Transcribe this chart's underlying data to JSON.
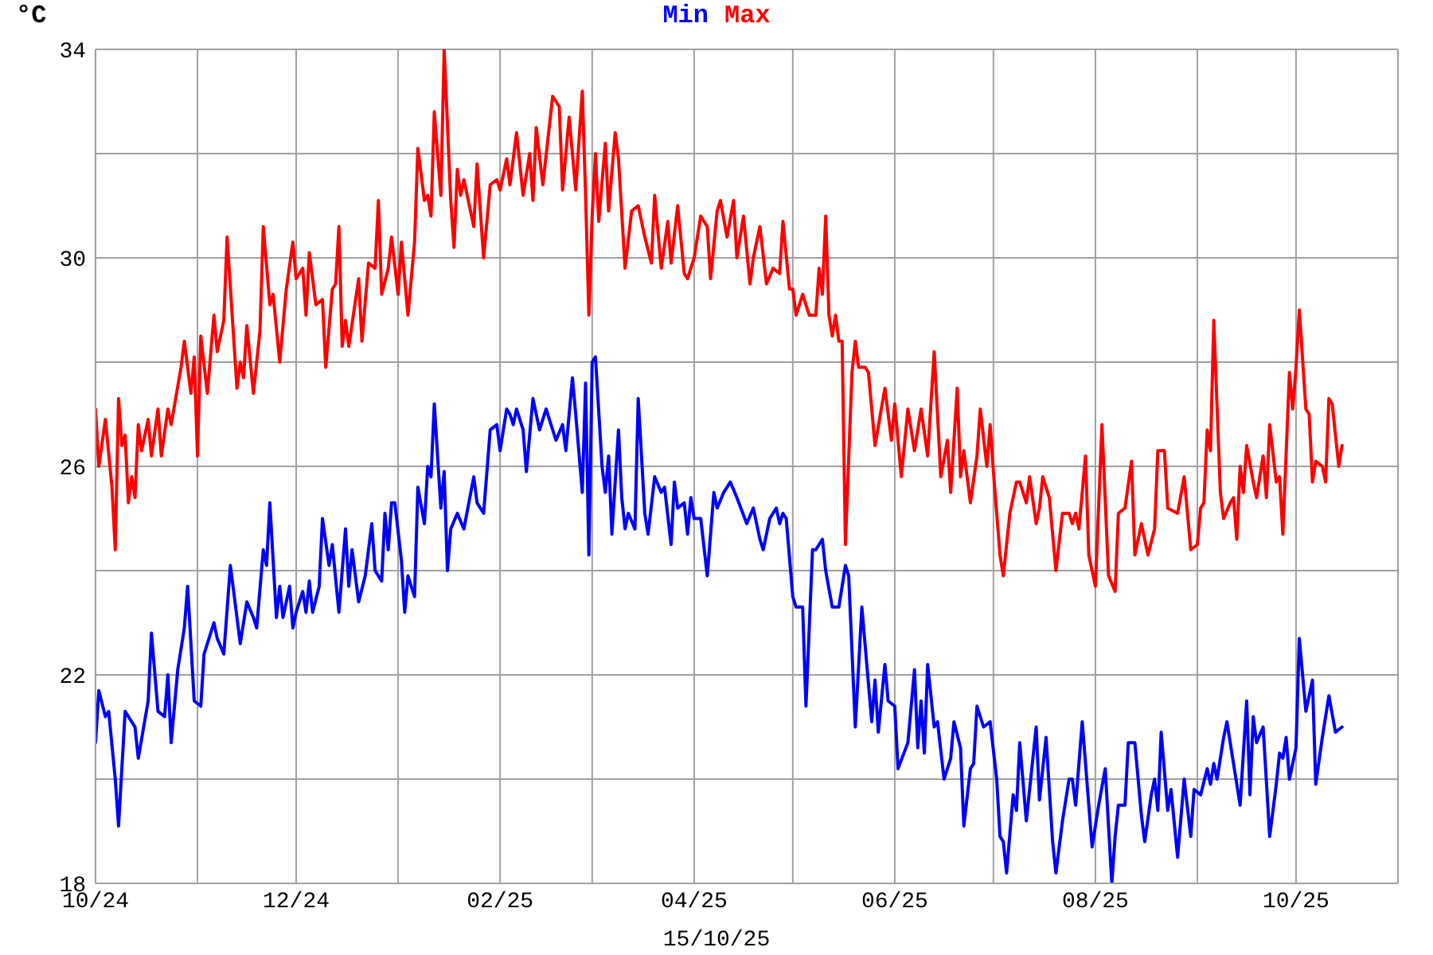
{
  "chart_data": {
    "type": "line",
    "ylabel": "°C",
    "annotations": [
      "15/10/25"
    ],
    "legend": "top",
    "grid": true,
    "xlim": [
      "2024-10-01",
      "2025-11-01"
    ],
    "xticks": [
      {
        "value": "2024-10-01",
        "label": "10/24"
      },
      {
        "value": "2024-11-01",
        "label": null
      },
      {
        "value": "2024-12-01",
        "label": "12/24"
      },
      {
        "value": "2025-01-01",
        "label": null
      },
      {
        "value": "2025-02-01",
        "label": "02/25"
      },
      {
        "value": "2025-03-01",
        "label": null
      },
      {
        "value": "2025-04-01",
        "label": "04/25"
      },
      {
        "value": "2025-05-01",
        "label": null
      },
      {
        "value": "2025-06-01",
        "label": "06/25"
      },
      {
        "value": "2025-07-01",
        "label": null
      },
      {
        "value": "2025-08-01",
        "label": "08/25"
      },
      {
        "value": "2025-09-01",
        "label": null
      },
      {
        "value": "2025-10-01",
        "label": "10/25"
      },
      {
        "value": "2025-11-01",
        "label": null
      }
    ],
    "ylim": [
      18,
      34
    ],
    "yticks": [
      18,
      {
        "value": 20,
        "label": null
      },
      22,
      {
        "value": 24,
        "label": null
      },
      26,
      {
        "value": 28,
        "label": null
      },
      30,
      {
        "value": 32,
        "label": null
      },
      34
    ],
    "series": [
      {
        "name": "Min",
        "color": "#0000ff",
        "x": [
          "2024-10-01",
          "2024-10-02",
          "2024-10-04",
          "2024-10-05",
          "2024-10-07",
          "2024-10-08",
          "2024-10-10",
          "2024-10-12",
          "2024-10-13",
          "2024-10-14",
          "2024-10-17",
          "2024-10-18",
          "2024-10-20",
          "2024-10-22",
          "2024-10-23",
          "2024-10-24",
          "2024-10-26",
          "2024-10-28",
          "2024-10-29",
          "2024-10-31",
          "2024-11-02",
          "2024-11-03",
          "2024-11-06",
          "2024-11-07",
          "2024-11-09",
          "2024-11-11",
          "2024-11-14",
          "2024-11-16",
          "2024-11-18",
          "2024-11-19",
          "2024-11-21",
          "2024-11-22",
          "2024-11-23",
          "2024-11-25",
          "2024-11-26",
          "2024-11-27",
          "2024-11-29",
          "2024-11-30",
          "2024-12-01",
          "2024-12-03",
          "2024-12-04",
          "2024-12-05",
          "2024-12-06",
          "2024-12-08",
          "2024-12-09",
          "2024-12-11",
          "2024-12-12",
          "2024-12-14",
          "2024-12-16",
          "2024-12-17",
          "2024-12-18",
          "2024-12-20",
          "2024-12-22",
          "2024-12-24",
          "2024-12-25",
          "2024-12-27",
          "2024-12-28",
          "2024-12-29",
          "2024-12-30",
          "2024-12-31",
          "2025-01-02",
          "2025-01-03",
          "2025-01-04",
          "2025-01-06",
          "2025-01-07",
          "2025-01-09",
          "2025-01-10",
          "2025-01-11",
          "2025-01-12",
          "2025-01-14",
          "2025-01-15",
          "2025-01-16",
          "2025-01-17",
          "2025-01-19",
          "2025-01-21",
          "2025-01-24",
          "2025-01-25",
          "2025-01-27",
          "2025-01-29",
          "2025-01-31",
          "2025-02-01",
          "2025-02-03",
          "2025-02-04",
          "2025-02-05",
          "2025-02-06",
          "2025-02-08",
          "2025-02-09",
          "2025-02-11",
          "2025-02-13",
          "2025-02-15",
          "2025-02-16",
          "2025-02-18",
          "2025-02-20",
          "2025-02-21",
          "2025-02-23",
          "2025-02-24",
          "2025-02-26",
          "2025-02-27",
          "2025-02-28",
          "2025-03-01",
          "2025-03-02",
          "2025-03-04",
          "2025-03-05",
          "2025-03-06",
          "2025-03-07",
          "2025-03-09",
          "2025-03-10",
          "2025-03-11",
          "2025-03-12",
          "2025-03-14",
          "2025-03-15",
          "2025-03-17",
          "2025-03-18",
          "2025-03-20",
          "2025-03-22",
          "2025-03-23",
          "2025-03-25",
          "2025-03-26",
          "2025-03-27",
          "2025-03-29",
          "2025-03-30",
          "2025-03-31",
          "2025-04-01",
          "2025-04-03",
          "2025-04-05",
          "2025-04-07",
          "2025-04-08",
          "2025-04-10",
          "2025-04-12",
          "2025-04-14",
          "2025-04-17",
          "2025-04-19",
          "2025-04-21",
          "2025-04-22",
          "2025-04-24",
          "2025-04-26",
          "2025-04-27",
          "2025-04-28",
          "2025-04-29",
          "2025-05-01",
          "2025-05-02",
          "2025-05-03",
          "2025-05-04",
          "2025-05-05",
          "2025-05-07",
          "2025-05-08",
          "2025-05-10",
          "2025-05-11",
          "2025-05-13",
          "2025-05-15",
          "2025-05-17",
          "2025-05-18",
          "2025-05-20",
          "2025-05-22",
          "2025-05-25",
          "2025-05-26",
          "2025-05-27",
          "2025-05-29",
          "2025-05-30",
          "2025-06-01",
          "2025-06-02",
          "2025-06-05",
          "2025-06-07",
          "2025-06-08",
          "2025-06-09",
          "2025-06-10",
          "2025-06-11",
          "2025-06-13",
          "2025-06-14",
          "2025-06-16",
          "2025-06-18",
          "2025-06-19",
          "2025-06-21",
          "2025-06-22",
          "2025-06-24",
          "2025-06-25",
          "2025-06-26",
          "2025-06-28",
          "2025-06-30",
          "2025-07-02",
          "2025-07-03",
          "2025-07-04",
          "2025-07-05",
          "2025-07-07",
          "2025-07-08",
          "2025-07-09",
          "2025-07-11",
          "2025-07-14",
          "2025-07-15",
          "2025-07-17",
          "2025-07-19",
          "2025-07-20",
          "2025-07-22",
          "2025-07-24",
          "2025-07-25",
          "2025-07-26",
          "2025-07-28",
          "2025-07-30",
          "2025-07-31",
          "2025-08-02",
          "2025-08-04",
          "2025-08-06",
          "2025-08-07",
          "2025-08-08",
          "2025-08-10",
          "2025-08-11",
          "2025-08-13",
          "2025-08-15",
          "2025-08-16",
          "2025-08-18",
          "2025-08-19",
          "2025-08-20",
          "2025-08-21",
          "2025-08-23",
          "2025-08-24",
          "2025-08-26",
          "2025-08-28",
          "2025-08-30",
          "2025-08-31",
          "2025-09-02",
          "2025-09-04",
          "2025-09-05",
          "2025-09-06",
          "2025-09-07",
          "2025-09-09",
          "2025-09-10",
          "2025-09-12",
          "2025-09-14",
          "2025-09-16",
          "2025-09-17",
          "2025-09-18",
          "2025-09-19",
          "2025-09-21",
          "2025-09-23",
          "2025-09-25",
          "2025-09-26",
          "2025-09-27",
          "2025-09-28",
          "2025-09-29",
          "2025-10-01",
          "2025-10-02",
          "2025-10-04",
          "2025-10-06",
          "2025-10-07",
          "2025-10-09",
          "2025-10-11",
          "2025-10-13",
          "2025-10-15"
        ],
        "values": [
          20.7,
          21.7,
          21.2,
          21.3,
          20.0,
          19.1,
          21.3,
          21.1,
          21.0,
          20.4,
          21.5,
          22.8,
          21.3,
          21.2,
          22.0,
          20.7,
          22.1,
          22.9,
          23.7,
          21.5,
          21.4,
          22.4,
          23.0,
          22.7,
          22.4,
          24.1,
          22.6,
          23.4,
          23.1,
          22.9,
          24.4,
          24.1,
          25.3,
          23.1,
          23.7,
          23.1,
          23.7,
          22.9,
          23.2,
          23.6,
          23.2,
          23.8,
          23.2,
          23.7,
          25.0,
          24.1,
          24.5,
          23.2,
          24.8,
          23.7,
          24.4,
          23.4,
          23.9,
          24.9,
          24.0,
          23.8,
          25.1,
          24.4,
          25.3,
          25.3,
          24.2,
          23.2,
          23.9,
          23.5,
          25.6,
          24.9,
          26.0,
          25.8,
          27.2,
          25.2,
          25.9,
          24.0,
          24.8,
          25.1,
          24.8,
          25.8,
          25.3,
          25.1,
          26.7,
          26.8,
          26.3,
          27.1,
          27.0,
          26.8,
          27.1,
          26.7,
          25.9,
          27.3,
          26.7,
          27.1,
          26.9,
          26.5,
          26.8,
          26.3,
          27.7,
          27.0,
          25.5,
          27.6,
          24.3,
          28.0,
          28.1,
          26.0,
          25.5,
          26.2,
          24.7,
          26.7,
          25.4,
          24.8,
          25.1,
          24.8,
          27.3,
          25.1,
          24.7,
          25.8,
          25.5,
          25.6,
          24.5,
          25.7,
          25.2,
          25.3,
          24.7,
          25.4,
          25.0,
          25.0,
          23.9,
          25.5,
          25.2,
          25.5,
          25.7,
          25.4,
          24.9,
          25.2,
          24.6,
          24.4,
          25.0,
          25.2,
          24.9,
          25.1,
          25.0,
          23.5,
          23.3,
          23.3,
          23.3,
          21.4,
          24.4,
          24.4,
          24.6,
          24.0,
          23.3,
          23.3,
          24.1,
          23.9,
          21.0,
          23.3,
          21.1,
          21.9,
          20.9,
          22.2,
          21.5,
          21.4,
          20.2,
          20.7,
          22.1,
          20.6,
          21.5,
          20.5,
          22.2,
          21.0,
          21.1,
          20.0,
          20.4,
          21.1,
          20.6,
          19.1,
          20.2,
          20.3,
          21.4,
          21.0,
          21.1,
          20.0,
          18.9,
          18.8,
          18.2,
          19.7,
          19.4,
          20.7,
          19.2,
          21.0,
          19.6,
          20.8,
          18.8,
          18.2,
          19.2,
          20.0,
          20.0,
          19.5,
          21.1,
          19.5,
          18.7,
          19.5,
          20.2,
          18.0,
          18.9,
          19.5,
          19.5,
          20.7,
          20.7,
          19.3,
          18.8,
          19.7,
          20.0,
          19.4,
          20.9,
          19.4,
          19.8,
          18.5,
          20.0,
          18.9,
          19.8,
          19.7,
          20.2,
          19.9,
          20.3,
          20.0,
          20.8,
          21.1,
          20.3,
          19.5,
          21.5,
          19.7,
          21.2,
          20.7,
          21.0,
          18.9,
          19.9,
          20.5,
          20.4,
          20.8,
          20.0,
          20.6,
          22.7,
          21.3,
          21.9,
          19.9,
          20.8,
          21.6,
          20.9,
          21.0
        ]
      },
      {
        "name": "Max",
        "color": "#ff0000",
        "x": [
          "2024-10-01",
          "2024-10-02",
          "2024-10-04",
          "2024-10-06",
          "2024-10-07",
          "2024-10-08",
          "2024-10-09",
          "2024-10-10",
          "2024-10-11",
          "2024-10-12",
          "2024-10-13",
          "2024-10-14",
          "2024-10-15",
          "2024-10-17",
          "2024-10-18",
          "2024-10-20",
          "2024-10-21",
          "2024-10-23",
          "2024-10-24",
          "2024-10-27",
          "2024-10-28",
          "2024-10-30",
          "2024-10-31",
          "2024-11-01",
          "2024-11-02",
          "2024-11-04",
          "2024-11-06",
          "2024-11-07",
          "2024-11-09",
          "2024-11-10",
          "2024-11-13",
          "2024-11-14",
          "2024-11-15",
          "2024-11-16",
          "2024-11-18",
          "2024-11-20",
          "2024-11-21",
          "2024-11-23",
          "2024-11-24",
          "2024-11-26",
          "2024-11-28",
          "2024-11-30",
          "2024-12-01",
          "2024-12-03",
          "2024-12-04",
          "2024-12-05",
          "2024-12-07",
          "2024-12-09",
          "2024-12-10",
          "2024-12-12",
          "2024-12-13",
          "2024-12-14",
          "2024-12-15",
          "2024-12-16",
          "2024-12-17",
          "2024-12-20",
          "2024-12-21",
          "2024-12-23",
          "2024-12-25",
          "2024-12-26",
          "2024-12-27",
          "2024-12-29",
          "2024-12-30",
          "2025-01-01",
          "2025-01-02",
          "2025-01-04",
          "2025-01-06",
          "2025-01-07",
          "2025-01-09",
          "2025-01-10",
          "2025-01-11",
          "2025-01-12",
          "2025-01-14",
          "2025-01-15",
          "2025-01-17",
          "2025-01-18",
          "2025-01-19",
          "2025-01-20",
          "2025-01-21",
          "2025-01-24",
          "2025-01-25",
          "2025-01-27",
          "2025-01-29",
          "2025-01-31",
          "2025-02-01",
          "2025-02-03",
          "2025-02-04",
          "2025-02-06",
          "2025-02-08",
          "2025-02-10",
          "2025-02-11",
          "2025-02-12",
          "2025-02-14",
          "2025-02-17",
          "2025-02-19",
          "2025-02-20",
          "2025-02-22",
          "2025-02-24",
          "2025-02-26",
          "2025-02-27",
          "2025-02-28",
          "2025-03-01",
          "2025-03-02",
          "2025-03-03",
          "2025-03-05",
          "2025-03-06",
          "2025-03-08",
          "2025-03-09",
          "2025-03-11",
          "2025-03-13",
          "2025-03-15",
          "2025-03-17",
          "2025-03-19",
          "2025-03-20",
          "2025-03-22",
          "2025-03-24",
          "2025-03-25",
          "2025-03-27",
          "2025-03-29",
          "2025-03-30",
          "2025-04-01",
          "2025-04-03",
          "2025-04-05",
          "2025-04-06",
          "2025-04-08",
          "2025-04-09",
          "2025-04-11",
          "2025-04-13",
          "2025-04-14",
          "2025-04-16",
          "2025-04-18",
          "2025-04-19",
          "2025-04-21",
          "2025-04-23",
          "2025-04-25",
          "2025-04-27",
          "2025-04-28",
          "2025-04-30",
          "2025-05-01",
          "2025-05-02",
          "2025-05-04",
          "2025-05-06",
          "2025-05-08",
          "2025-05-09",
          "2025-05-10",
          "2025-05-11",
          "2025-05-12",
          "2025-05-13",
          "2025-05-14",
          "2025-05-15",
          "2025-05-16",
          "2025-05-17",
          "2025-05-19",
          "2025-05-20",
          "2025-05-21",
          "2025-05-23",
          "2025-05-24",
          "2025-05-26",
          "2025-05-29",
          "2025-05-31",
          "2025-06-01",
          "2025-06-03",
          "2025-06-05",
          "2025-06-07",
          "2025-06-09",
          "2025-06-11",
          "2025-06-13",
          "2025-06-15",
          "2025-06-17",
          "2025-06-18",
          "2025-06-20",
          "2025-06-21",
          "2025-06-22",
          "2025-06-24",
          "2025-06-26",
          "2025-06-27",
          "2025-06-29",
          "2025-06-30",
          "2025-07-01",
          "2025-07-03",
          "2025-07-04",
          "2025-07-06",
          "2025-07-08",
          "2025-07-09",
          "2025-07-11",
          "2025-07-12",
          "2025-07-14",
          "2025-07-15",
          "2025-07-16",
          "2025-07-18",
          "2025-07-20",
          "2025-07-22",
          "2025-07-24",
          "2025-07-25",
          "2025-07-26",
          "2025-07-27",
          "2025-07-29",
          "2025-07-30",
          "2025-08-01",
          "2025-08-03",
          "2025-08-05",
          "2025-08-07",
          "2025-08-08",
          "2025-08-10",
          "2025-08-12",
          "2025-08-13",
          "2025-08-15",
          "2025-08-17",
          "2025-08-19",
          "2025-08-20",
          "2025-08-22",
          "2025-08-23",
          "2025-08-26",
          "2025-08-28",
          "2025-08-30",
          "2025-09-01",
          "2025-09-02",
          "2025-09-03",
          "2025-09-04",
          "2025-09-05",
          "2025-09-06",
          "2025-09-08",
          "2025-09-09",
          "2025-09-11",
          "2025-09-12",
          "2025-09-13",
          "2025-09-14",
          "2025-09-15",
          "2025-09-16",
          "2025-09-18",
          "2025-09-19",
          "2025-09-21",
          "2025-09-22",
          "2025-09-23",
          "2025-09-25",
          "2025-09-26",
          "2025-09-27",
          "2025-09-29",
          "2025-09-30",
          "2025-10-01",
          "2025-10-02",
          "2025-10-04",
          "2025-10-05",
          "2025-10-06",
          "2025-10-07",
          "2025-10-09",
          "2025-10-10",
          "2025-10-11",
          "2025-10-12",
          "2025-10-14",
          "2025-10-15"
        ],
        "values": [
          27.1,
          26.0,
          26.9,
          25.6,
          24.4,
          27.3,
          26.4,
          26.6,
          25.3,
          25.8,
          25.4,
          26.8,
          26.3,
          26.9,
          26.2,
          27.1,
          26.2,
          27.1,
          26.8,
          27.9,
          28.4,
          27.4,
          28.1,
          26.2,
          28.5,
          27.4,
          28.9,
          28.2,
          28.8,
          30.4,
          27.5,
          28.0,
          27.7,
          28.7,
          27.4,
          28.6,
          30.6,
          29.1,
          29.3,
          28.0,
          29.4,
          30.3,
          29.6,
          29.8,
          28.9,
          30.1,
          29.1,
          29.2,
          27.9,
          29.4,
          29.5,
          30.6,
          28.3,
          28.8,
          28.3,
          29.6,
          28.4,
          29.9,
          29.8,
          31.1,
          29.3,
          29.8,
          30.4,
          29.3,
          30.3,
          28.9,
          30.3,
          32.1,
          31.1,
          31.2,
          30.8,
          32.8,
          31.2,
          34.0,
          31.1,
          30.2,
          31.7,
          31.2,
          31.5,
          30.6,
          31.8,
          30.0,
          31.4,
          31.5,
          31.3,
          31.9,
          31.4,
          32.4,
          31.2,
          32.0,
          31.1,
          32.5,
          31.4,
          33.1,
          32.9,
          31.3,
          32.7,
          31.3,
          33.2,
          31.2,
          28.9,
          30.8,
          32.0,
          30.7,
          32.2,
          30.9,
          32.4,
          31.9,
          29.8,
          30.9,
          31.0,
          30.4,
          29.9,
          31.2,
          29.8,
          30.7,
          29.9,
          31.0,
          29.7,
          29.6,
          30.0,
          30.8,
          30.6,
          29.6,
          30.9,
          31.1,
          30.4,
          31.1,
          30.0,
          30.8,
          29.5,
          30.0,
          30.6,
          29.5,
          29.8,
          29.7,
          30.7,
          29.4,
          29.4,
          28.9,
          29.3,
          28.9,
          28.9,
          29.8,
          29.3,
          30.8,
          28.9,
          28.5,
          28.9,
          28.4,
          28.4,
          24.5,
          27.8,
          28.4,
          27.9,
          27.9,
          27.8,
          26.4,
          27.5,
          26.5,
          27.2,
          25.8,
          27.1,
          26.3,
          27.1,
          26.2,
          28.2,
          25.8,
          26.5,
          25.5,
          27.5,
          25.8,
          26.3,
          25.3,
          26.2,
          27.1,
          26.0,
          26.8,
          25.9,
          24.3,
          23.9,
          25.1,
          25.7,
          25.7,
          25.3,
          25.8,
          24.9,
          25.2,
          25.8,
          25.4,
          24.0,
          25.1,
          25.1,
          24.9,
          25.1,
          24.8,
          26.2,
          24.3,
          23.7,
          26.8,
          23.9,
          23.6,
          25.1,
          25.2,
          26.1,
          24.3,
          24.9,
          24.3,
          24.8,
          26.3,
          26.3,
          25.2,
          25.1,
          25.8,
          24.4,
          24.5,
          25.2,
          25.3,
          26.7,
          26.3,
          28.8,
          25.5,
          25.0,
          25.3,
          25.4,
          24.6,
          26.0,
          25.5,
          26.4,
          25.7,
          25.4,
          26.2,
          25.4,
          26.8,
          25.7,
          25.8,
          24.7,
          27.8,
          27.1,
          27.9,
          29.0,
          27.1,
          27.0,
          25.7,
          26.1,
          26.0,
          25.7,
          27.3,
          27.2,
          26.0,
          26.4
        ]
      }
    ]
  }
}
